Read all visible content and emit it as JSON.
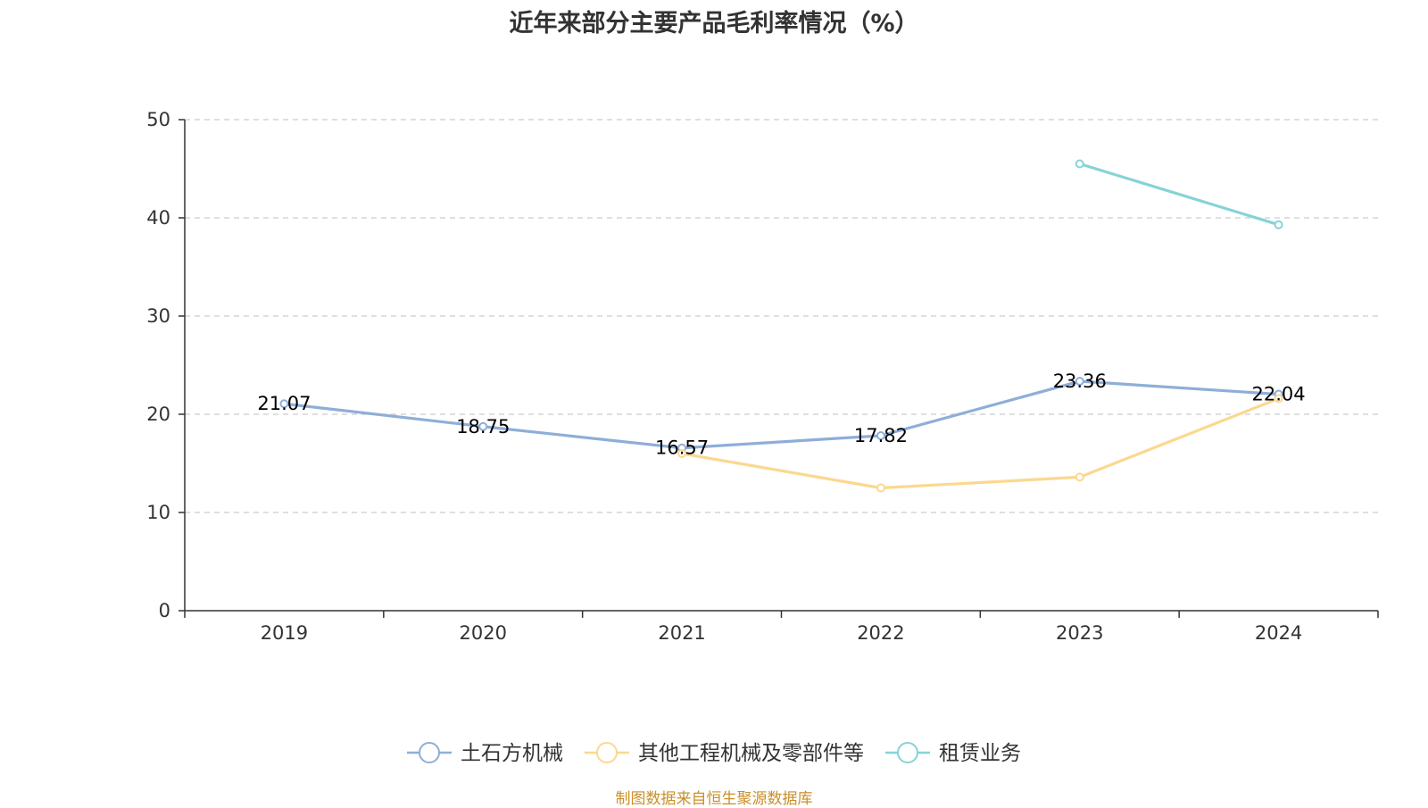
{
  "chart_data": {
    "type": "line",
    "title": "近年来部分主要产品毛利率情况（%）",
    "categories": [
      "2019",
      "2020",
      "2021",
      "2022",
      "2023",
      "2024"
    ],
    "ylim": [
      0,
      50
    ],
    "yticks": [
      0,
      10,
      20,
      30,
      40,
      50
    ],
    "grid": "horizontal-dashed",
    "legend_position": "bottom-center",
    "series": [
      {
        "name": "土石方机械",
        "color": "#8eaed8",
        "values": [
          21.07,
          18.75,
          16.57,
          17.82,
          23.36,
          22.04
        ],
        "labels": [
          "21.07",
          "18.75",
          "16.57",
          "17.82",
          "23.36",
          "22.04"
        ]
      },
      {
        "name": "其他工程机械及零部件等",
        "color": "#fbd88f",
        "values": [
          null,
          null,
          16.0,
          12.5,
          13.6,
          21.6
        ],
        "labels": []
      },
      {
        "name": "租赁业务",
        "color": "#86d3d6",
        "values": [
          null,
          null,
          null,
          null,
          45.5,
          39.3
        ],
        "labels": []
      }
    ],
    "source": "制图数据来自恒生聚源数据库"
  }
}
